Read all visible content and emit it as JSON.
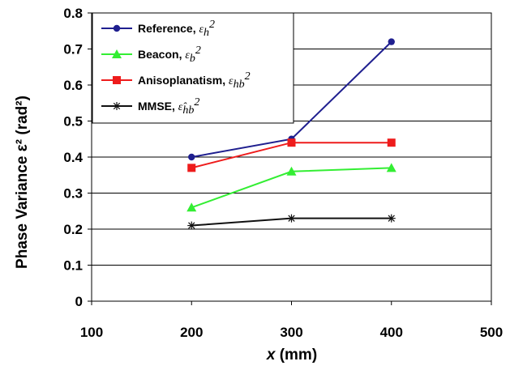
{
  "chart_data": {
    "type": "line",
    "title": "",
    "xlabel_var": "x",
    "xlabel_unit": " (mm)",
    "ylabel": "Phase Variance ε² (rad²)",
    "xlim": [
      100,
      500
    ],
    "ylim": [
      0,
      0.8
    ],
    "xticks": [
      100,
      200,
      300,
      400,
      500
    ],
    "xtick_labels": [
      "100",
      "200",
      "300",
      "400",
      "500"
    ],
    "yticks": [
      0,
      0.1,
      0.2,
      0.3,
      0.4,
      0.5,
      0.6,
      0.7,
      0.8
    ],
    "ytick_labels": [
      "0",
      "0.1",
      "0.2",
      "0.3",
      "0.4",
      "0.5",
      "0.6",
      "0.7",
      "0.8"
    ],
    "grid": "horizontal",
    "legend_position": "top-left",
    "series": [
      {
        "name": "Reference,",
        "symbol_base": "ε",
        "symbol_sub": "h",
        "symbol_sup": "2",
        "color": "#1f1f8f",
        "marker": "circle",
        "x": [
          200,
          300,
          400
        ],
        "values": [
          0.4,
          0.45,
          0.72
        ]
      },
      {
        "name": "Beacon,",
        "symbol_base": "ε",
        "symbol_sub": "b",
        "symbol_sup": "2",
        "color": "#33ee33",
        "marker": "triangle",
        "x": [
          200,
          300,
          400
        ],
        "values": [
          0.26,
          0.36,
          0.37
        ]
      },
      {
        "name": "Anisoplanatism,",
        "symbol_base": "ε",
        "symbol_sub": "hb",
        "symbol_sup": "2",
        "color": "#ee1c1c",
        "marker": "square",
        "x": [
          200,
          300,
          400
        ],
        "values": [
          0.37,
          0.44,
          0.44
        ]
      },
      {
        "name": "MMSE,",
        "symbol_base": "ε̂",
        "symbol_sub": "hb",
        "symbol_sup": "2",
        "color": "#111111",
        "marker": "star",
        "x": [
          200,
          300,
          400
        ],
        "values": [
          0.21,
          0.23,
          0.23
        ]
      }
    ]
  }
}
